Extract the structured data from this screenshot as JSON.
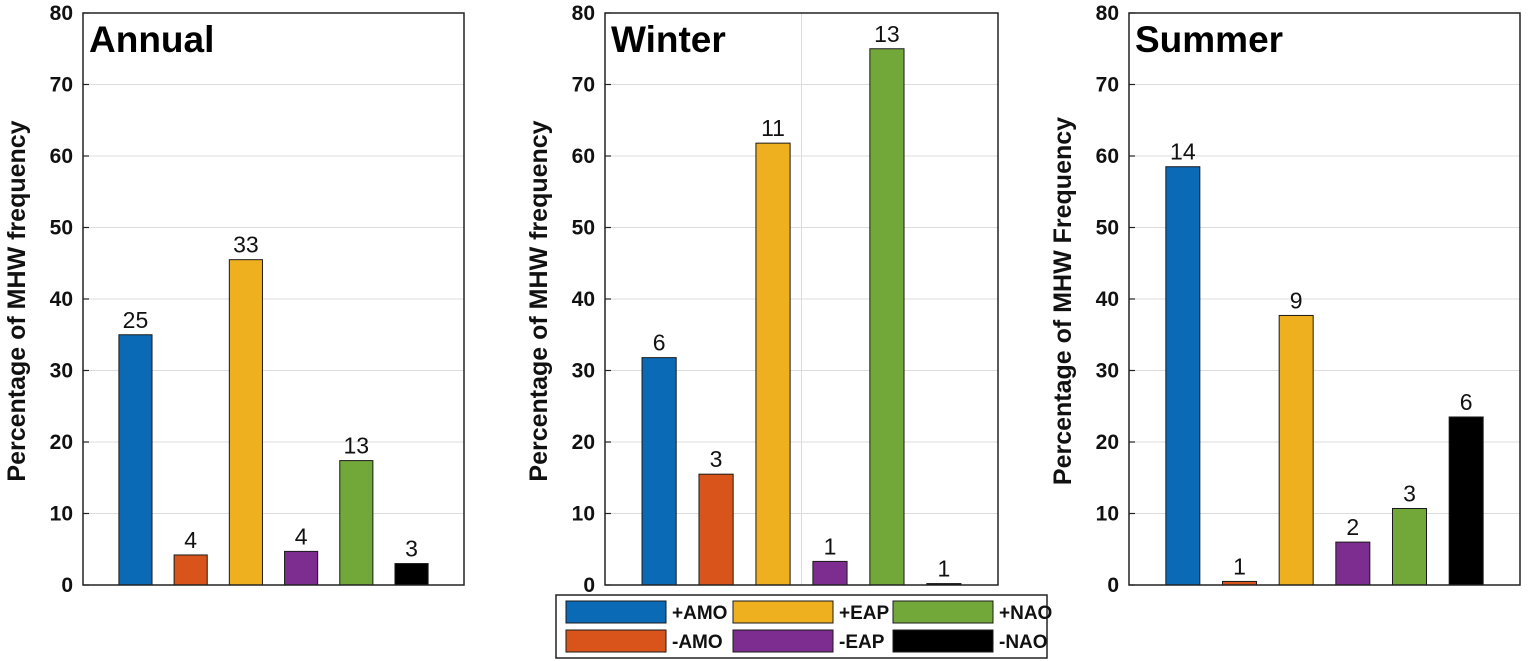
{
  "chart_data": {
    "type": "bar",
    "ylim": [
      0,
      80
    ],
    "yticks": [
      "0",
      "10",
      "20",
      "30",
      "40",
      "50",
      "60",
      "70",
      "80"
    ],
    "categories": [
      "+AMO",
      "-AMO",
      "+EAP",
      "-EAP",
      "+NAO",
      "-NAO"
    ],
    "colors": {
      "+AMO": "#0a6ab5",
      "-AMO": "#d9541b",
      "+EAP": "#efb020",
      "-EAP": "#7c2d8f",
      "+NAO": "#72a83a",
      "-NAO": "#000000"
    },
    "panels": [
      {
        "title": "Annual",
        "ylabel": "Percentage of MHW frequency",
        "values": [
          35,
          4.2,
          45.5,
          4.7,
          17.4,
          3
        ],
        "labels": [
          "25",
          "4",
          "33",
          "4",
          "13",
          "3"
        ]
      },
      {
        "title": "Winter",
        "ylabel": "Percentage of MHW frequency",
        "values": [
          31.8,
          15.5,
          61.8,
          3.3,
          75,
          0.2
        ],
        "labels": [
          "6",
          "3",
          "11",
          "1",
          "13",
          "1"
        ]
      },
      {
        "title": "Summer",
        "ylabel": "Percentage of MHW Frequency",
        "values": [
          58.5,
          0.5,
          37.7,
          6,
          10.7,
          23.5
        ],
        "labels": [
          "14",
          "1",
          "9",
          "2",
          "3",
          "6"
        ]
      }
    ],
    "legend": {
      "placement": "bottom-center",
      "entries": [
        "+AMO",
        "+EAP",
        "+NAO",
        "-AMO",
        "-EAP",
        "-NAO"
      ]
    }
  }
}
